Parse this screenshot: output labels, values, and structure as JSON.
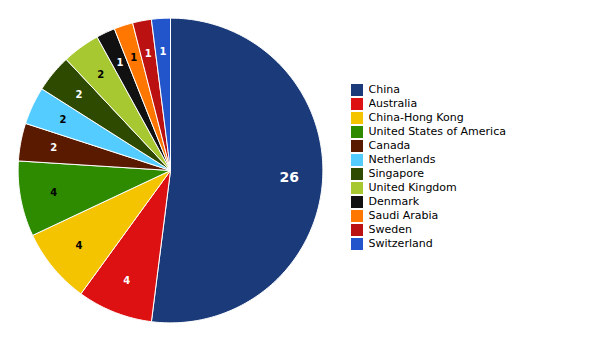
{
  "chart_data": {
    "type": "pie",
    "categories": [
      "China",
      "Australia",
      "China-Hong Kong",
      "United States of America",
      "Canada",
      "Netherlands",
      "Singapore",
      "United Kingdom",
      "Denmark",
      "Saudi Arabia",
      "Sweden",
      "Switzerland"
    ],
    "values": [
      26,
      4,
      4,
      4,
      2,
      2,
      2,
      2,
      1,
      1,
      1,
      1
    ],
    "colors": [
      "#1a3a7a",
      "#dd1111",
      "#f5c400",
      "#2e8b00",
      "#5a1a00",
      "#55ccff",
      "#2d4a00",
      "#a8c832",
      "#111111",
      "#ff7700",
      "#bb1111",
      "#2255cc"
    ],
    "data_labels": true,
    "legend": "right"
  }
}
